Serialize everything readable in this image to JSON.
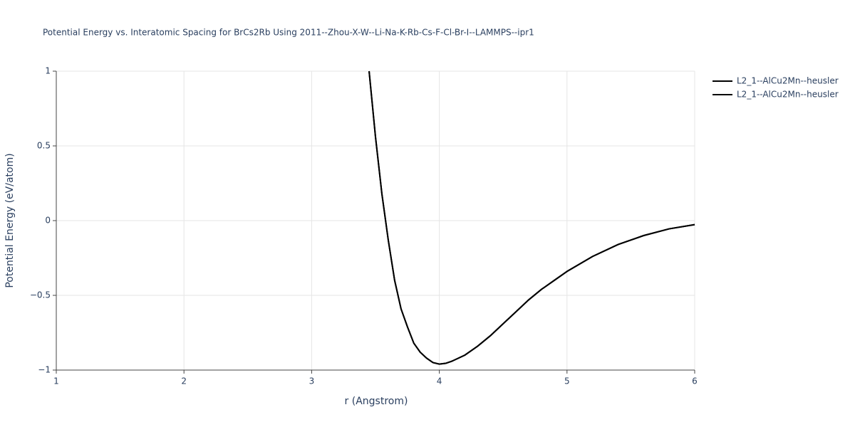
{
  "chart_data": {
    "type": "line",
    "title": "Potential Energy vs. Interatomic Spacing for BrCs2Rb Using 2011--Zhou-X-W--Li-Na-K-Rb-Cs-F-Cl-Br-I--LAMMPS--ipr1",
    "xlabel": "r (Angstrom)",
    "ylabel": "Potential Energy (eV/atom)",
    "x": [
      3.45,
      3.5,
      3.55,
      3.6,
      3.65,
      3.7,
      3.75,
      3.8,
      3.85,
      3.9,
      3.95,
      4,
      4.05,
      4.1,
      4.2,
      4.3,
      4.4,
      4.5,
      4.6,
      4.7,
      4.8,
      4.9,
      5,
      5.2,
      5.4,
      5.6,
      5.8,
      6
    ],
    "series": [
      {
        "name": "L2_1--AlCu2Mn--heusler",
        "color": "#000000",
        "values": [
          1.0,
          0.56,
          0.18,
          -0.13,
          -0.4,
          -0.59,
          -0.71,
          -0.82,
          -0.88,
          -0.92,
          -0.95,
          -0.96,
          -0.955,
          -0.94,
          -0.9,
          -0.84,
          -0.77,
          -0.69,
          -0.61,
          -0.53,
          -0.46,
          -0.4,
          -0.34,
          -0.24,
          -0.16,
          -0.1,
          -0.055,
          -0.027
        ]
      },
      {
        "name": "L2_1--AlCu2Mn--heusler",
        "color": "#000000",
        "values": [
          1.0,
          0.56,
          0.18,
          -0.13,
          -0.4,
          -0.59,
          -0.71,
          -0.82,
          -0.88,
          -0.92,
          -0.95,
          -0.96,
          -0.955,
          -0.94,
          -0.9,
          -0.84,
          -0.77,
          -0.69,
          -0.61,
          -0.53,
          -0.46,
          -0.4,
          -0.34,
          -0.24,
          -0.16,
          -0.1,
          -0.055,
          -0.027
        ]
      }
    ],
    "xlim": [
      1,
      6
    ],
    "xticks": [
      1,
      2,
      3,
      4,
      5,
      6
    ],
    "ylim": [
      -1,
      1
    ],
    "yticks": [
      {
        "value": -1,
        "label": "−1"
      },
      {
        "value": -0.5,
        "label": "−0.5"
      },
      0,
      0.5,
      1
    ],
    "grid": true
  }
}
